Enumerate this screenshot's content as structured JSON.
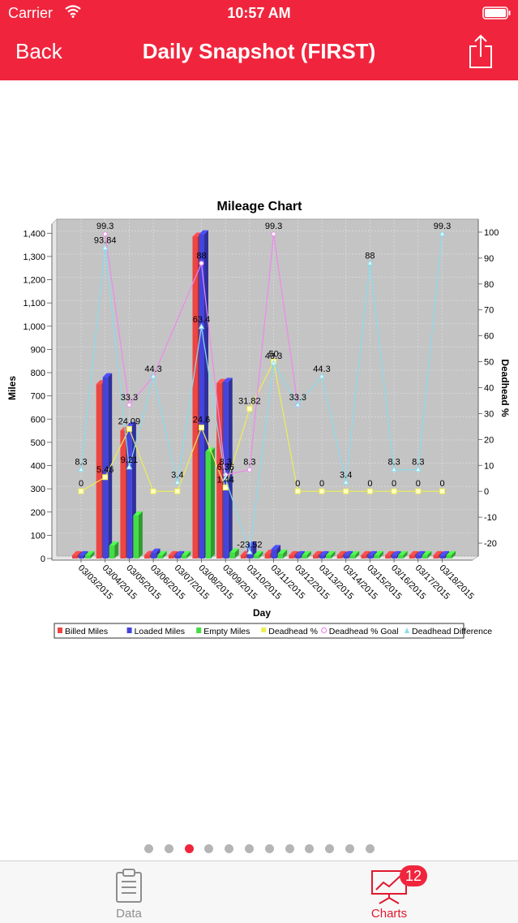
{
  "status_bar": {
    "carrier": "Carrier",
    "time": "10:57 AM"
  },
  "nav": {
    "back_label": "Back",
    "title": "Daily Snapshot (FIRST)"
  },
  "chart_data": {
    "type": "bar",
    "title": "Mileage Chart",
    "xlabel": "Day",
    "ylabel": "Miles",
    "y2label": "Deadhead %",
    "ylim": [
      0,
      1450
    ],
    "y2lim": [
      -25,
      105
    ],
    "yticks": [
      "0",
      "100",
      "200",
      "300",
      "400",
      "500",
      "600",
      "700",
      "800",
      "900",
      "1,000",
      "1,100",
      "1,200",
      "1,300",
      "1,400"
    ],
    "y2ticks": [
      "-20",
      "-10",
      "0",
      "10",
      "20",
      "30",
      "40",
      "50",
      "60",
      "70",
      "80",
      "90",
      "100"
    ],
    "categories": [
      "03/03/2015",
      "03/04/2015",
      "03/05/2015",
      "03/06/2015",
      "03/07/2015",
      "03/08/2015",
      "03/09/2015",
      "03/10/2015",
      "03/11/2015",
      "03/12/2015",
      "03/13/2015",
      "03/14/2015",
      "03/15/2015",
      "03/16/2015",
      "03/17/2015",
      "03/18/2015"
    ],
    "legend_position": "bottom",
    "grid": true,
    "bar_series": [
      {
        "name": "Billed Miles",
        "color": "#ee4444",
        "values": [
          0,
          740,
          540,
          5,
          0,
          1375,
          745,
          5,
          10,
          0,
          0,
          0,
          0,
          0,
          0,
          0
        ]
      },
      {
        "name": "Loaded Miles",
        "color": "#4444dd",
        "values": [
          0,
          770,
          560,
          15,
          0,
          1385,
          750,
          45,
          30,
          0,
          0,
          0,
          0,
          0,
          0,
          0
        ]
      },
      {
        "name": "Empty Miles",
        "color": "#44dd44",
        "values": [
          0,
          45,
          175,
          0,
          0,
          450,
          15,
          0,
          10,
          0,
          0,
          0,
          0,
          0,
          0,
          0
        ]
      }
    ],
    "line_series": [
      {
        "name": "Deadhead %",
        "color": "#eeee55",
        "marker": "square",
        "values": [
          0,
          5.46,
          24.09,
          0,
          0,
          24.6,
          1.44,
          31.82,
          50,
          0,
          0,
          0,
          0,
          0,
          0,
          0
        ]
      },
      {
        "name": "Deadhead % Goal",
        "color": "#ee88ee",
        "marker": "circle",
        "values": [
          null,
          99.3,
          33.3,
          44.3,
          null,
          88,
          6.36,
          8.3,
          99.3,
          33.3,
          null,
          null,
          null,
          null,
          null,
          null
        ]
      },
      {
        "name": "Deadhead Difference",
        "color": "#88ddee",
        "marker": "triangle",
        "values": [
          8.3,
          93.84,
          9.21,
          44.3,
          3.4,
          63.4,
          4.92,
          -23.52,
          49.3,
          33.3,
          44.3,
          3.4,
          88,
          8.3,
          8.3,
          99.3
        ]
      }
    ],
    "point_labels": [
      {
        "i": 0,
        "v": 8.3,
        "text": "8.3"
      },
      {
        "i": 0,
        "v": 0,
        "text": "0"
      },
      {
        "i": 1,
        "v": 99.3,
        "text": "99.3"
      },
      {
        "i": 1,
        "v": 93.84,
        "text": "93.84"
      },
      {
        "i": 1,
        "v": 5.46,
        "text": "5.46"
      },
      {
        "i": 2,
        "v": 33.3,
        "text": "33.3"
      },
      {
        "i": 2,
        "v": 24.09,
        "text": "24.09"
      },
      {
        "i": 2,
        "v": 9.21,
        "text": "9.21"
      },
      {
        "i": 3,
        "v": 44.3,
        "text": "44.3"
      },
      {
        "i": 4,
        "v": 3.4,
        "text": "3.4"
      },
      {
        "i": 5,
        "v": 88,
        "text": "88"
      },
      {
        "i": 5,
        "v": 63.4,
        "text": "63.4"
      },
      {
        "i": 5,
        "v": 24.6,
        "text": "24.6"
      },
      {
        "i": 6,
        "v": 8.3,
        "text": "8.3"
      },
      {
        "i": 6,
        "v": 6.36,
        "text": "6.36"
      },
      {
        "i": 6,
        "v": 1.44,
        "text": "1.44"
      },
      {
        "i": 7,
        "v": 31.82,
        "text": "31.82"
      },
      {
        "i": 7,
        "v": 8.3,
        "text": "8.3"
      },
      {
        "i": 7,
        "v": -23.52,
        "text": "-23.52"
      },
      {
        "i": 8,
        "v": 99.3,
        "text": "99.3"
      },
      {
        "i": 8,
        "v": 50,
        "text": "50"
      },
      {
        "i": 8,
        "v": 49.3,
        "text": "49.3"
      },
      {
        "i": 9,
        "v": 33.3,
        "text": "33.3"
      },
      {
        "i": 9,
        "v": 0,
        "text": "0"
      },
      {
        "i": 10,
        "v": 44.3,
        "text": "44.3"
      },
      {
        "i": 10,
        "v": 0,
        "text": "0"
      },
      {
        "i": 11,
        "v": 3.4,
        "text": "3.4"
      },
      {
        "i": 12,
        "v": 88,
        "text": "88"
      },
      {
        "i": 12,
        "v": 0,
        "text": "0"
      },
      {
        "i": 13,
        "v": 8.3,
        "text": "8.3"
      },
      {
        "i": 13,
        "v": 0,
        "text": "0"
      },
      {
        "i": 14,
        "v": 8.3,
        "text": "8.3"
      },
      {
        "i": 14,
        "v": 0,
        "text": "0"
      },
      {
        "i": 15,
        "v": 99.3,
        "text": "99.3"
      },
      {
        "i": 15,
        "v": 0,
        "text": "0"
      }
    ],
    "legend": [
      "Billed Miles",
      "Loaded Miles",
      "Empty Miles",
      "Deadhead %",
      "Deadhead % Goal",
      "Deadhead Difference"
    ]
  },
  "pager": {
    "count": 12,
    "active_index": 2
  },
  "tabs": [
    {
      "label": "Data",
      "icon": "clipboard-icon",
      "active": false
    },
    {
      "label": "Charts",
      "icon": "presentation-chart-icon",
      "active": true,
      "badge": "12"
    }
  ],
  "colors": {
    "accent": "#f0253d",
    "tab_inactive": "#8e8e8e"
  }
}
